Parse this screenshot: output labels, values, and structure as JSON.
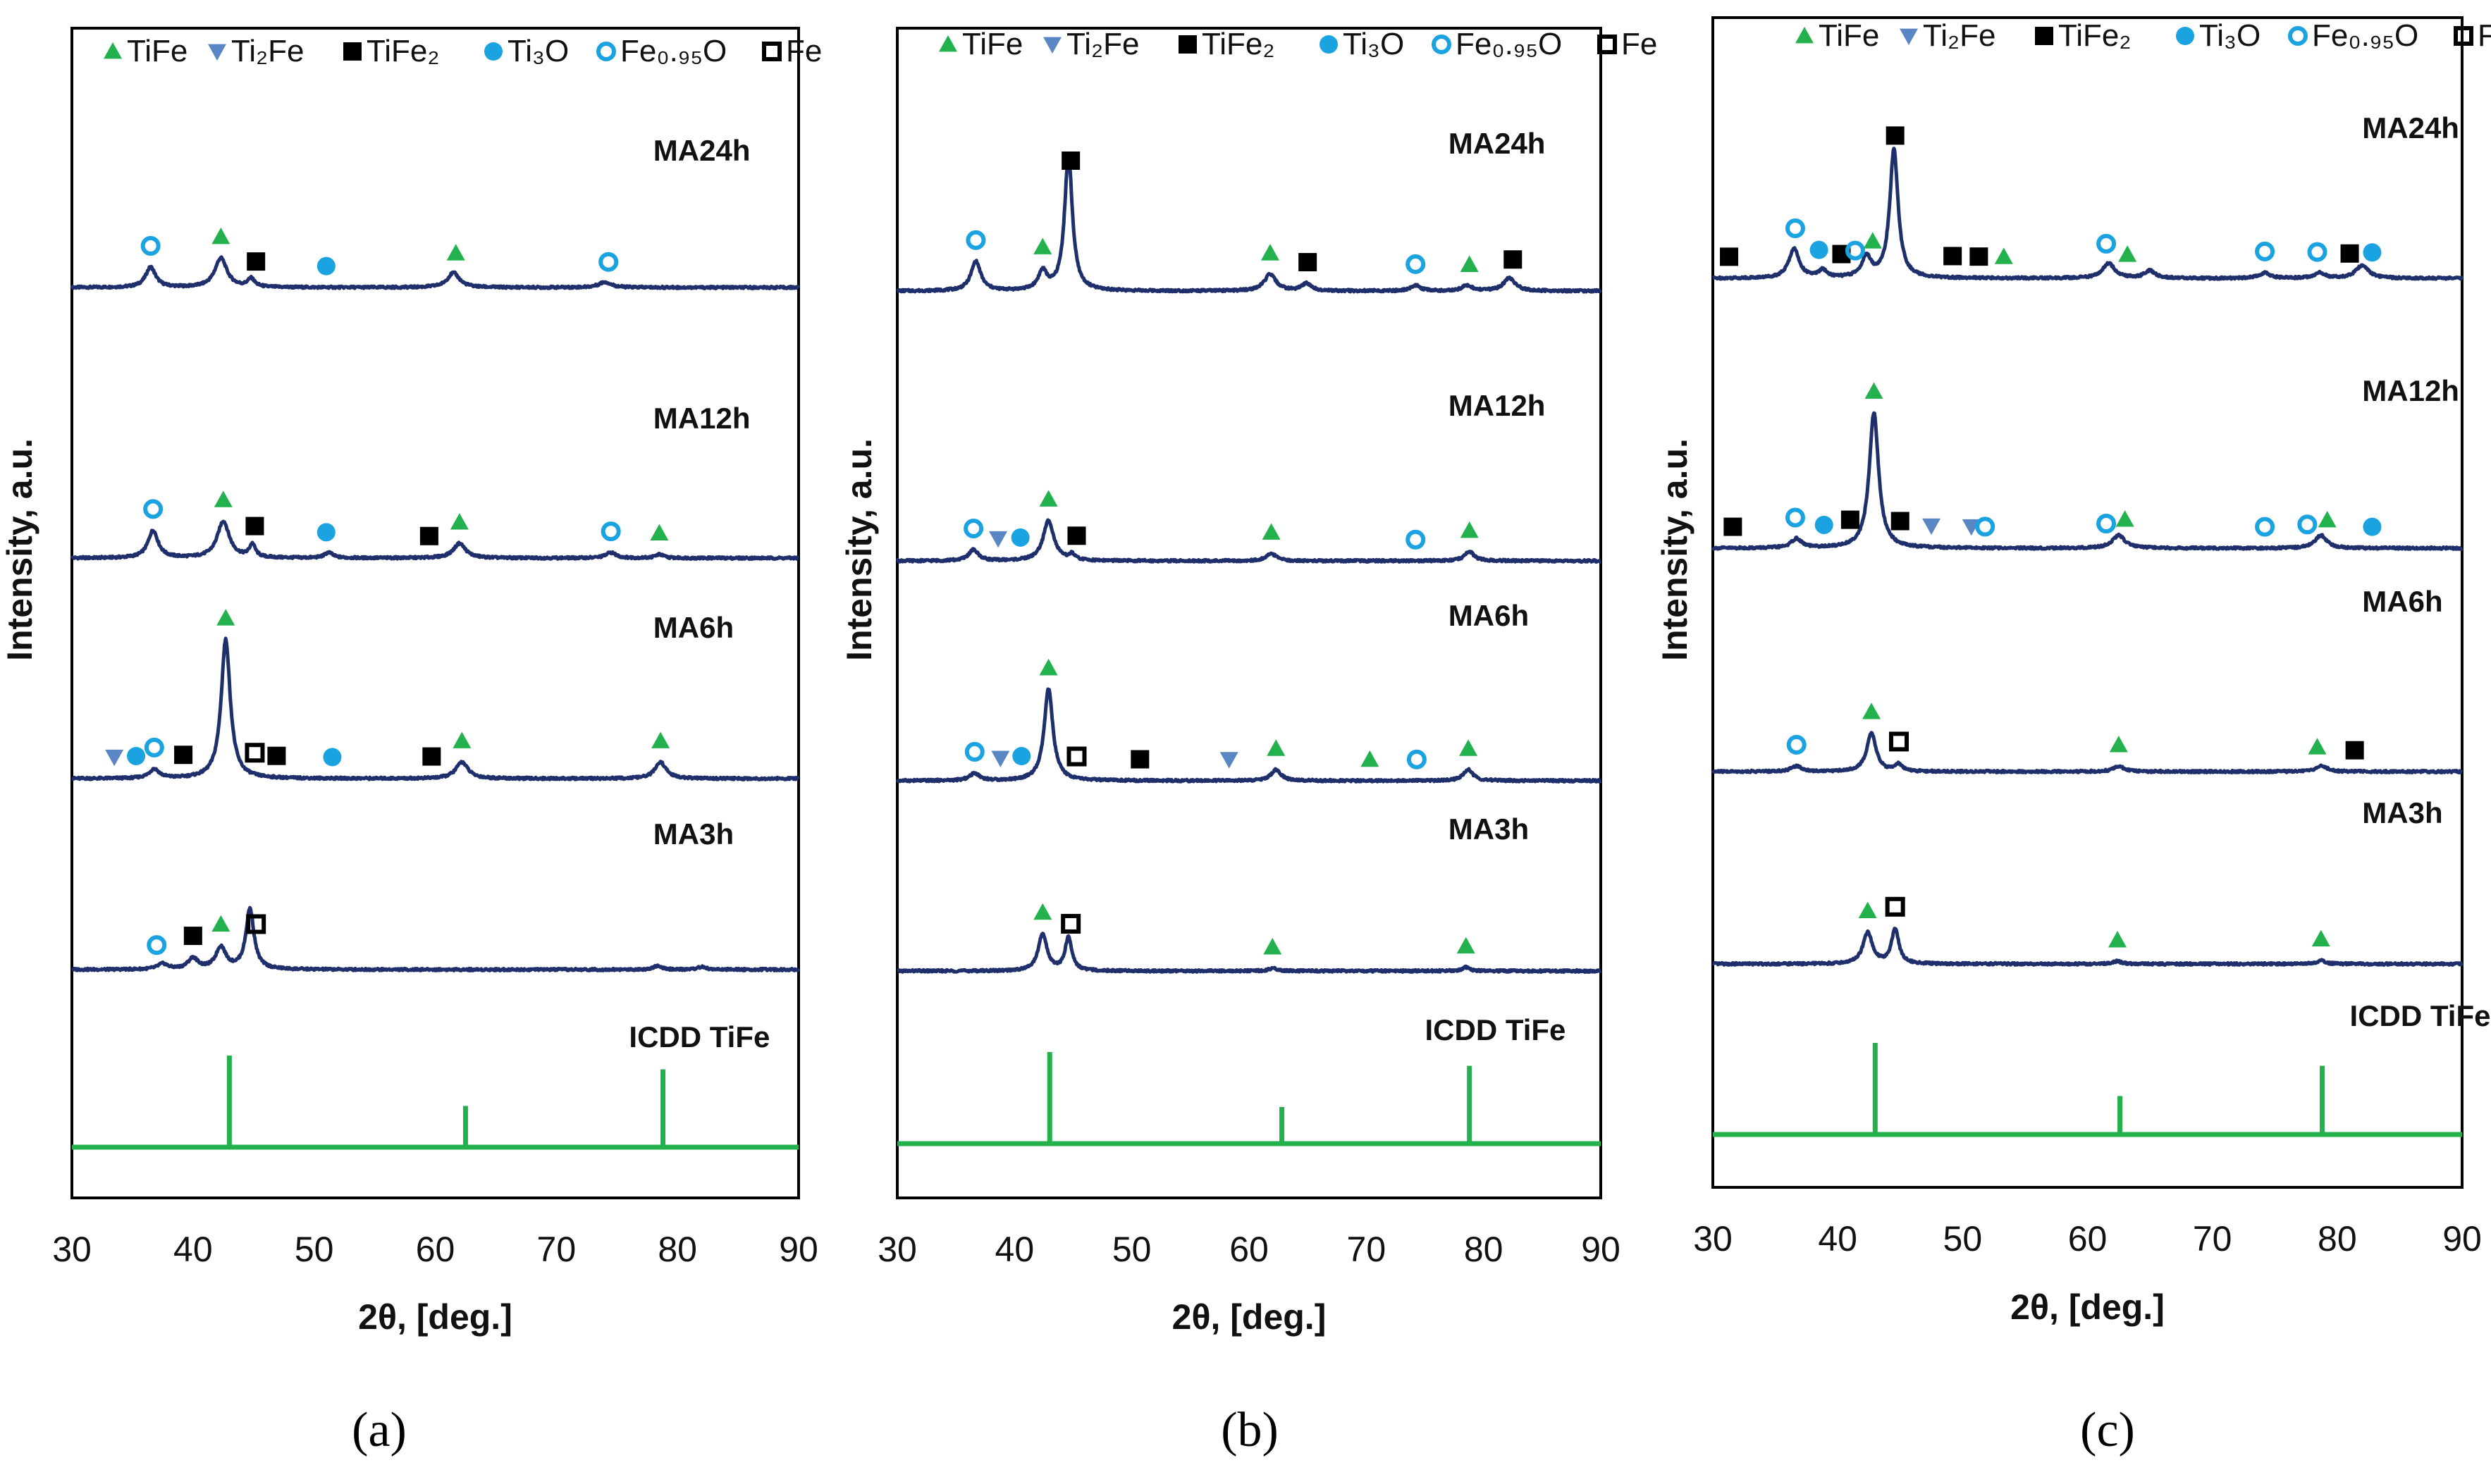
{
  "colors": {
    "trace": "#1f2f6b",
    "reference": "#22b14c",
    "TiFe": "#22b14c",
    "Ti2Fe": "#5b86c4",
    "TiFe2": "#000000",
    "Ti3O": "#1aa3e0",
    "Fe095O": "#1aa3e0",
    "Fe": "#000000"
  },
  "legend": [
    {
      "key": "TiFe",
      "label": "TiFe",
      "marker": "triangle-up-icon"
    },
    {
      "key": "Ti2Fe",
      "label": "Ti₂Fe",
      "marker": "triangle-down-icon"
    },
    {
      "key": "TiFe2",
      "label": "TiFe₂",
      "marker": "filled-square-icon"
    },
    {
      "key": "Ti3O",
      "label": "Ti₃O",
      "marker": "filled-circle-icon"
    },
    {
      "key": "Fe095O",
      "label": "Fe₀.₉₅O",
      "marker": "open-circle-icon"
    },
    {
      "key": "Fe",
      "label": "Fe",
      "marker": "open-square-icon"
    }
  ],
  "chart_data": [
    {
      "type": "line",
      "panel": "a",
      "caption": "(a)",
      "xlabel": "2θ, [deg.]",
      "ylabel": "Intensity, a.u.",
      "xlim": [
        30,
        90
      ],
      "xticks": [
        30,
        40,
        50,
        60,
        70,
        80,
        90
      ],
      "series": [
        {
          "name": "MA24h",
          "label_x": 78,
          "peaks": [
            {
              "x": 36.5,
              "h": 1.1,
              "w": 0.5
            },
            {
              "x": 42.3,
              "h": 1.6,
              "w": 0.6
            },
            {
              "x": 44.8,
              "h": 0.45,
              "w": 0.35
            },
            {
              "x": 61.5,
              "h": 0.8,
              "w": 0.6
            },
            {
              "x": 74.0,
              "h": 0.3,
              "w": 0.6
            }
          ],
          "markers": [
            {
              "x": 36.5,
              "phase": "Fe095O"
            },
            {
              "x": 42.3,
              "phase": "TiFe"
            },
            {
              "x": 45.2,
              "phase": "TiFe2"
            },
            {
              "x": 51.0,
              "phase": "Ti3O"
            },
            {
              "x": 61.7,
              "phase": "TiFe"
            },
            {
              "x": 74.3,
              "phase": "Fe095O"
            }
          ]
        },
        {
          "name": "MA12h",
          "label_x": 78,
          "peaks": [
            {
              "x": 36.7,
              "h": 1.5,
              "w": 0.5
            },
            {
              "x": 42.5,
              "h": 2.0,
              "w": 0.6
            },
            {
              "x": 44.9,
              "h": 0.7,
              "w": 0.3
            },
            {
              "x": 51.2,
              "h": 0.3,
              "w": 0.4
            },
            {
              "x": 62.0,
              "h": 0.8,
              "w": 0.6
            },
            {
              "x": 74.5,
              "h": 0.3,
              "w": 0.5
            },
            {
              "x": 78.5,
              "h": 0.2,
              "w": 0.4
            }
          ],
          "markers": [
            {
              "x": 36.7,
              "phase": "Fe095O"
            },
            {
              "x": 42.5,
              "phase": "TiFe"
            },
            {
              "x": 45.1,
              "phase": "TiFe2"
            },
            {
              "x": 51.0,
              "phase": "Ti3O"
            },
            {
              "x": 59.5,
              "phase": "TiFe2"
            },
            {
              "x": 62.0,
              "phase": "TiFe"
            },
            {
              "x": 74.5,
              "phase": "Fe095O"
            },
            {
              "x": 78.5,
              "phase": "TiFe"
            }
          ]
        },
        {
          "name": "MA6h",
          "label_x": 78,
          "peaks": [
            {
              "x": 36.8,
              "h": 0.5,
              "w": 0.5
            },
            {
              "x": 42.7,
              "h": 7.6,
              "w": 0.45
            },
            {
              "x": 62.2,
              "h": 0.9,
              "w": 0.6
            },
            {
              "x": 78.6,
              "h": 0.9,
              "w": 0.55
            }
          ],
          "markers": [
            {
              "x": 33.5,
              "phase": "Ti2Fe"
            },
            {
              "x": 35.3,
              "phase": "Ti3O"
            },
            {
              "x": 36.8,
              "phase": "Fe095O"
            },
            {
              "x": 39.2,
              "phase": "TiFe2"
            },
            {
              "x": 42.7,
              "phase": "TiFe"
            },
            {
              "x": 45.1,
              "phase": "Fe"
            },
            {
              "x": 46.9,
              "phase": "TiFe2"
            },
            {
              "x": 51.5,
              "phase": "Ti3O"
            },
            {
              "x": 59.7,
              "phase": "TiFe2"
            },
            {
              "x": 62.2,
              "phase": "TiFe"
            },
            {
              "x": 78.6,
              "phase": "TiFe"
            }
          ]
        },
        {
          "name": "MA3h",
          "label_x": 78,
          "peaks": [
            {
              "x": 37.5,
              "h": 0.3,
              "w": 0.5
            },
            {
              "x": 40.0,
              "h": 0.6,
              "w": 0.5
            },
            {
              "x": 42.3,
              "h": 1.2,
              "w": 0.5
            },
            {
              "x": 44.7,
              "h": 3.3,
              "w": 0.4
            },
            {
              "x": 78.3,
              "h": 0.2,
              "w": 0.4
            },
            {
              "x": 82.0,
              "h": 0.15,
              "w": 0.4
            }
          ],
          "markers": [
            {
              "x": 37.0,
              "phase": "Fe095O"
            },
            {
              "x": 40.0,
              "phase": "TiFe2"
            },
            {
              "x": 42.3,
              "phase": "TiFe"
            },
            {
              "x": 45.2,
              "phase": "Fe"
            }
          ]
        }
      ],
      "reference": {
        "name": "ICDD TiFe",
        "label_x": 76,
        "lines": [
          {
            "x": 43.0,
            "h": 1.0
          },
          {
            "x": 62.5,
            "h": 0.45
          },
          {
            "x": 78.8,
            "h": 0.85
          }
        ]
      }
    },
    {
      "type": "line",
      "panel": "b",
      "caption": "(b)",
      "xlabel": "2θ, [deg.]",
      "ylabel": "Intensity, a.u.",
      "xlim": [
        30,
        90
      ],
      "xticks": [
        30,
        40,
        50,
        60,
        70,
        80,
        90
      ],
      "series": [
        {
          "name": "MA24h",
          "label_x": 77,
          "peaks": [
            {
              "x": 36.7,
              "h": 1.6,
              "w": 0.5
            },
            {
              "x": 42.4,
              "h": 1.0,
              "w": 0.45
            },
            {
              "x": 44.6,
              "h": 7.4,
              "w": 0.4
            },
            {
              "x": 61.8,
              "h": 0.9,
              "w": 0.6
            },
            {
              "x": 64.9,
              "h": 0.4,
              "w": 0.5
            },
            {
              "x": 74.2,
              "h": 0.3,
              "w": 0.5
            },
            {
              "x": 78.6,
              "h": 0.3,
              "w": 0.5
            },
            {
              "x": 82.2,
              "h": 0.7,
              "w": 0.6
            }
          ],
          "markers": [
            {
              "x": 36.7,
              "phase": "Fe095O"
            },
            {
              "x": 42.4,
              "phase": "TiFe"
            },
            {
              "x": 44.8,
              "phase": "TiFe2"
            },
            {
              "x": 61.8,
              "phase": "TiFe"
            },
            {
              "x": 65.0,
              "phase": "TiFe2"
            },
            {
              "x": 74.2,
              "phase": "Fe095O"
            },
            {
              "x": 78.8,
              "phase": "TiFe"
            },
            {
              "x": 82.5,
              "phase": "TiFe2"
            }
          ]
        },
        {
          "name": "MA12h",
          "label_x": 77,
          "peaks": [
            {
              "x": 36.5,
              "h": 0.6,
              "w": 0.5
            },
            {
              "x": 42.9,
              "h": 2.2,
              "w": 0.55
            },
            {
              "x": 44.9,
              "h": 0.3,
              "w": 0.3
            },
            {
              "x": 61.9,
              "h": 0.4,
              "w": 0.5
            },
            {
              "x": 78.8,
              "h": 0.5,
              "w": 0.5
            }
          ],
          "markers": [
            {
              "x": 36.5,
              "phase": "Fe095O"
            },
            {
              "x": 38.6,
              "phase": "Ti2Fe"
            },
            {
              "x": 40.5,
              "phase": "Ti3O"
            },
            {
              "x": 42.9,
              "phase": "TiFe"
            },
            {
              "x": 45.3,
              "phase": "TiFe2"
            },
            {
              "x": 61.9,
              "phase": "TiFe"
            },
            {
              "x": 74.2,
              "phase": "Fe095O"
            },
            {
              "x": 78.8,
              "phase": "TiFe"
            }
          ]
        },
        {
          "name": "MA6h",
          "label_x": 77,
          "peaks": [
            {
              "x": 36.6,
              "h": 0.4,
              "w": 0.5
            },
            {
              "x": 42.9,
              "h": 5.0,
              "w": 0.45
            },
            {
              "x": 62.3,
              "h": 0.6,
              "w": 0.5
            },
            {
              "x": 78.7,
              "h": 0.6,
              "w": 0.5
            }
          ],
          "markers": [
            {
              "x": 36.6,
              "phase": "Fe095O"
            },
            {
              "x": 38.8,
              "phase": "Ti2Fe"
            },
            {
              "x": 40.6,
              "phase": "Ti3O"
            },
            {
              "x": 45.3,
              "phase": "Fe"
            },
            {
              "x": 50.7,
              "phase": "TiFe2"
            },
            {
              "x": 42.9,
              "phase": "TiFe"
            },
            {
              "x": 58.3,
              "phase": "Ti2Fe"
            },
            {
              "x": 62.3,
              "phase": "TiFe"
            },
            {
              "x": 70.3,
              "phase": "TiFe"
            },
            {
              "x": 74.3,
              "phase": "Fe095O"
            },
            {
              "x": 78.7,
              "phase": "TiFe"
            }
          ]
        },
        {
          "name": "MA3h",
          "label_x": 77,
          "peaks": [
            {
              "x": 42.4,
              "h": 2.0,
              "w": 0.45
            },
            {
              "x": 44.6,
              "h": 1.8,
              "w": 0.35
            },
            {
              "x": 62.0,
              "h": 0.15,
              "w": 0.4
            },
            {
              "x": 78.5,
              "h": 0.2,
              "w": 0.4
            }
          ],
          "markers": [
            {
              "x": 42.4,
              "phase": "TiFe"
            },
            {
              "x": 44.8,
              "phase": "Fe"
            },
            {
              "x": 62.0,
              "phase": "TiFe"
            },
            {
              "x": 78.5,
              "phase": "TiFe"
            }
          ]
        }
      ],
      "reference": {
        "name": "ICDD TiFe",
        "label_x": 75,
        "lines": [
          {
            "x": 43.0,
            "h": 1.0
          },
          {
            "x": 62.8,
            "h": 0.4
          },
          {
            "x": 78.8,
            "h": 0.85
          }
        ]
      }
    },
    {
      "type": "line",
      "panel": "c",
      "caption": "(c)",
      "xlabel": "2θ, [deg.]",
      "ylabel": "Intensity, a.u.",
      "xlim": [
        30,
        90
      ],
      "xticks": [
        30,
        40,
        50,
        60,
        70,
        80,
        90
      ],
      "series": [
        {
          "name": "MA24h",
          "label_x": 82,
          "peaks": [
            {
              "x": 36.5,
              "h": 1.6,
              "w": 0.5
            },
            {
              "x": 38.8,
              "h": 0.4,
              "w": 0.4
            },
            {
              "x": 42.3,
              "h": 1.1,
              "w": 0.45
            },
            {
              "x": 44.5,
              "h": 7.0,
              "w": 0.4
            },
            {
              "x": 61.7,
              "h": 0.8,
              "w": 0.6
            },
            {
              "x": 65.0,
              "h": 0.4,
              "w": 0.5
            },
            {
              "x": 74.2,
              "h": 0.3,
              "w": 0.5
            },
            {
              "x": 78.6,
              "h": 0.3,
              "w": 0.5
            },
            {
              "x": 82.0,
              "h": 0.7,
              "w": 0.6
            }
          ],
          "markers": [
            {
              "x": 31.3,
              "phase": "TiFe2"
            },
            {
              "x": 36.6,
              "phase": "Fe095O"
            },
            {
              "x": 38.5,
              "phase": "Ti3O"
            },
            {
              "x": 40.3,
              "phase": "TiFe2"
            },
            {
              "x": 41.4,
              "phase": "Fe095O"
            },
            {
              "x": 42.8,
              "phase": "TiFe"
            },
            {
              "x": 44.6,
              "phase": "TiFe2"
            },
            {
              "x": 49.2,
              "phase": "TiFe2"
            },
            {
              "x": 51.3,
              "phase": "TiFe2"
            },
            {
              "x": 53.3,
              "phase": "TiFe"
            },
            {
              "x": 61.5,
              "phase": "Fe095O"
            },
            {
              "x": 63.2,
              "phase": "TiFe"
            },
            {
              "x": 74.2,
              "phase": "Fe095O"
            },
            {
              "x": 78.4,
              "phase": "Fe095O"
            },
            {
              "x": 81.0,
              "phase": "TiFe2"
            },
            {
              "x": 82.8,
              "phase": "Ti3O"
            }
          ]
        },
        {
          "name": "MA12h",
          "label_x": 82,
          "peaks": [
            {
              "x": 36.7,
              "h": 0.5,
              "w": 0.5
            },
            {
              "x": 42.9,
              "h": 7.4,
              "w": 0.45
            },
            {
              "x": 62.5,
              "h": 0.7,
              "w": 0.6
            },
            {
              "x": 78.7,
              "h": 0.7,
              "w": 0.55
            }
          ],
          "markers": [
            {
              "x": 31.6,
              "phase": "TiFe2"
            },
            {
              "x": 36.6,
              "phase": "Fe095O"
            },
            {
              "x": 38.9,
              "phase": "Ti3O"
            },
            {
              "x": 41.0,
              "phase": "TiFe2"
            },
            {
              "x": 42.9,
              "phase": "TiFe"
            },
            {
              "x": 45.0,
              "phase": "TiFe2"
            },
            {
              "x": 47.5,
              "phase": "Ti2Fe"
            },
            {
              "x": 50.7,
              "phase": "Ti2Fe"
            },
            {
              "x": 51.8,
              "phase": "Fe095O"
            },
            {
              "x": 61.5,
              "phase": "Fe095O"
            },
            {
              "x": 63.0,
              "phase": "TiFe"
            },
            {
              "x": 74.2,
              "phase": "Fe095O"
            },
            {
              "x": 77.6,
              "phase": "Fe095O"
            },
            {
              "x": 79.2,
              "phase": "TiFe"
            },
            {
              "x": 82.8,
              "phase": "Ti3O"
            }
          ]
        },
        {
          "name": "MA6h",
          "label_x": 82,
          "peaks": [
            {
              "x": 36.7,
              "h": 0.3,
              "w": 0.5
            },
            {
              "x": 42.7,
              "h": 2.1,
              "w": 0.45
            },
            {
              "x": 44.9,
              "h": 0.4,
              "w": 0.3
            },
            {
              "x": 62.5,
              "h": 0.3,
              "w": 0.5
            },
            {
              "x": 78.8,
              "h": 0.3,
              "w": 0.5
            }
          ],
          "markers": [
            {
              "x": 36.7,
              "phase": "Fe095O"
            },
            {
              "x": 42.7,
              "phase": "TiFe"
            },
            {
              "x": 44.9,
              "phase": "Fe"
            },
            {
              "x": 62.5,
              "phase": "TiFe"
            },
            {
              "x": 78.4,
              "phase": "TiFe"
            },
            {
              "x": 81.4,
              "phase": "TiFe2"
            }
          ]
        },
        {
          "name": "MA3h",
          "label_x": 82,
          "peaks": [
            {
              "x": 42.4,
              "h": 1.7,
              "w": 0.45
            },
            {
              "x": 44.6,
              "h": 1.9,
              "w": 0.35
            },
            {
              "x": 62.4,
              "h": 0.15,
              "w": 0.4
            },
            {
              "x": 78.7,
              "h": 0.2,
              "w": 0.4
            }
          ],
          "markers": [
            {
              "x": 42.4,
              "phase": "TiFe"
            },
            {
              "x": 44.6,
              "phase": "Fe"
            },
            {
              "x": 62.4,
              "phase": "TiFe"
            },
            {
              "x": 78.7,
              "phase": "TiFe"
            }
          ]
        }
      ],
      "reference": {
        "name": "ICDD TiFe",
        "label_x": 81,
        "lines": [
          {
            "x": 43.0,
            "h": 1.0
          },
          {
            "x": 62.6,
            "h": 0.42
          },
          {
            "x": 78.8,
            "h": 0.75
          }
        ]
      }
    }
  ]
}
